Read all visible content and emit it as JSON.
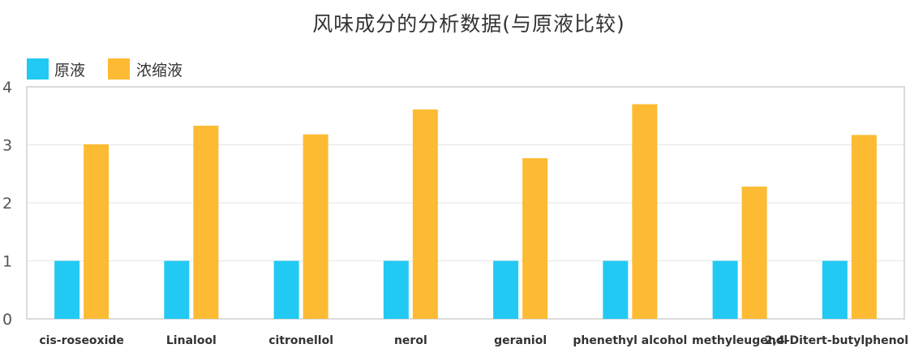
{
  "colors": {
    "series1": "#22c9f2",
    "series2": "#fdbb33",
    "grid": "#e6e6e6",
    "frame": "#cfcfcf"
  },
  "chart_data": {
    "type": "bar",
    "title": "风味成分的分析数据(与原液比较)",
    "xlabel": "",
    "ylabel": "",
    "legend_position": "top-left",
    "grid": true,
    "ylim": [
      0,
      4
    ],
    "yticks": [
      0,
      1,
      2,
      3,
      4
    ],
    "categories": [
      "cis-roseoxide",
      "Linalool",
      "citronellol",
      "nerol",
      "geraniol",
      "phenethyl alcohol",
      "methyleugenol",
      "2,4-Ditert-butylphenol"
    ],
    "series": [
      {
        "name": "原液",
        "values": [
          1,
          1,
          1,
          1,
          1,
          1,
          1,
          1
        ]
      },
      {
        "name": "浓缩液",
        "values": [
          3.01,
          3.33,
          3.18,
          3.61,
          2.77,
          3.7,
          2.28,
          3.17
        ]
      }
    ]
  }
}
